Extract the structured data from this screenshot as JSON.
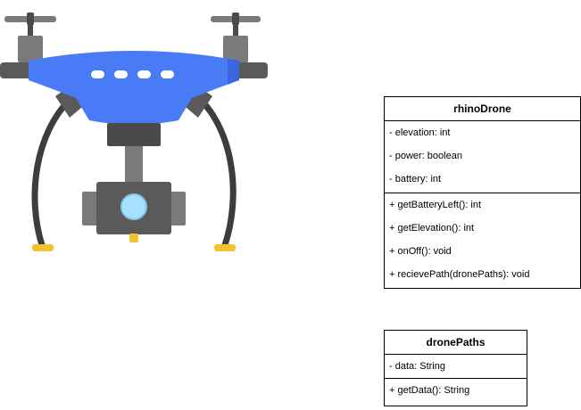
{
  "classes": [
    {
      "name": "rhinoDrone",
      "attributes": [
        "- elevation: int",
        "- power: boolean",
        "- battery: int"
      ],
      "methods": [
        "+ getBatteryLeft(): int",
        "+ getElevation(): int",
        "+ onOff(): void",
        "+ recievePath(dronePaths): void"
      ]
    },
    {
      "name": "dronePaths",
      "attributes": [
        "- data: String"
      ],
      "methods": [
        "+ getData(): String"
      ]
    }
  ],
  "colors": {
    "drone_body": "#4a7bf7",
    "drone_body_dark": "#3a66e0",
    "drone_frame": "#5a5a5a",
    "drone_arm": "#7a7a7a",
    "drone_legs": "#3d3d3d",
    "drone_feet": "#f2c230",
    "lens": "#a8e0ff"
  }
}
